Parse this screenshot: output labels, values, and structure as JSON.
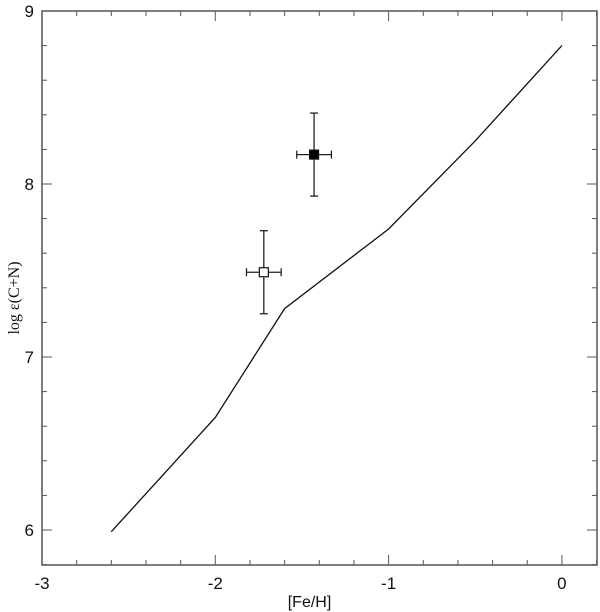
{
  "chart_data": {
    "type": "scatter",
    "title": "",
    "xlabel": "[Fe/H]",
    "ylabel": "log ε(C+N)",
    "xlim": [
      -3,
      0.2
    ],
    "ylim": [
      5.85,
      9
    ],
    "xticks": [
      "-3",
      "-2",
      "-1",
      "0"
    ],
    "yticks": [
      "6",
      "7",
      "8",
      "9"
    ],
    "grid": false,
    "legend": null,
    "series": [
      {
        "name": "model",
        "type": "line",
        "x": [
          -2.6,
          -2.0,
          -1.6,
          -1.0,
          -0.5,
          0.0
        ],
        "y": [
          5.99,
          6.65,
          7.28,
          7.74,
          8.25,
          8.8
        ]
      },
      {
        "name": "open-square point",
        "type": "errorbar",
        "marker": "open-square",
        "x": [
          -1.72
        ],
        "y": [
          7.49
        ],
        "xerr": [
          0.1
        ],
        "yerr": [
          0.24
        ]
      },
      {
        "name": "filled-square point",
        "type": "errorbar",
        "marker": "filled-square",
        "x": [
          -1.43
        ],
        "y": [
          8.17
        ],
        "xerr": [
          0.1
        ],
        "yerr": [
          0.24
        ]
      }
    ]
  },
  "axes": {
    "x_label": "[Fe/H]",
    "y_label": "log ε(C+N)",
    "x_ticks": [
      "-3",
      "-2",
      "-1",
      "0"
    ],
    "y_ticks": [
      "6",
      "7",
      "8",
      "9"
    ]
  }
}
